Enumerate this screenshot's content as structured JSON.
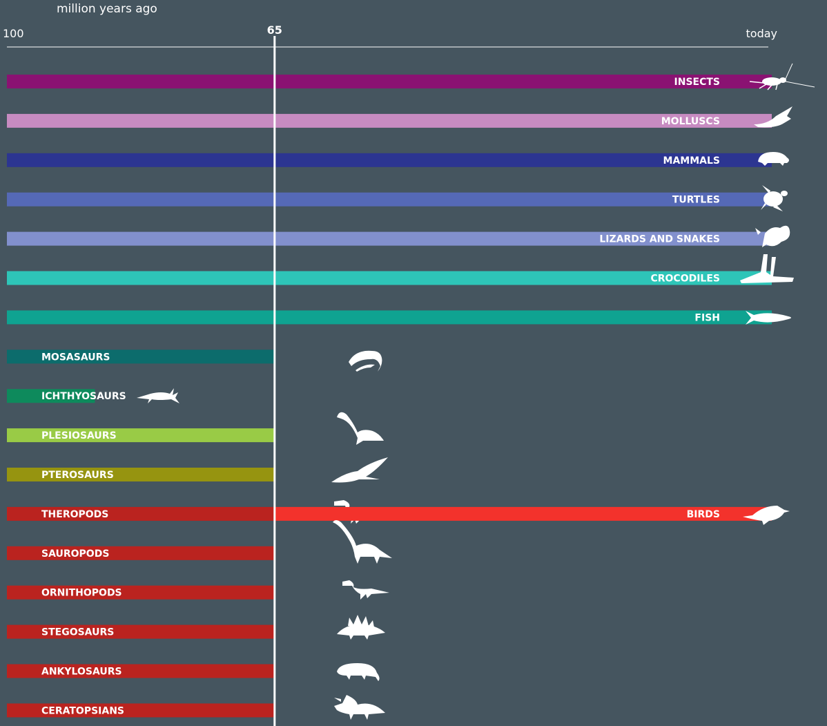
{
  "chart_data": {
    "type": "bar",
    "title": "",
    "xlabel": "million years ago",
    "ylabel": "",
    "xlim": [
      100,
      0
    ],
    "grid": false,
    "ticks": [
      {
        "value": 100,
        "label": "100",
        "bold": false
      },
      {
        "value": 65,
        "label": "65",
        "bold": true
      },
      {
        "value": 0,
        "label": "today",
        "bold": false
      }
    ],
    "marker": {
      "value": 65
    },
    "series": [
      {
        "name": "INSECTS",
        "start": 100,
        "end": 0,
        "color": "#8a1272",
        "icon": "insect-icon",
        "label_side": "end"
      },
      {
        "name": "MOLLUSCS",
        "start": 100,
        "end": 0,
        "color": "#c78bc1",
        "icon": "shell-icon",
        "label_side": "end"
      },
      {
        "name": "MAMMALS",
        "start": 100,
        "end": 0,
        "color": "#2c3591",
        "icon": "mammal-icon",
        "label_side": "end"
      },
      {
        "name": "TURTLES",
        "start": 100,
        "end": 0,
        "color": "#5569b6",
        "icon": "turtle-icon",
        "label_side": "end"
      },
      {
        "name": "LIZARDS AND SNAKES",
        "start": 100,
        "end": 0,
        "color": "#8290cd",
        "icon": "lizard-icon",
        "label_side": "end"
      },
      {
        "name": "CROCODILES",
        "start": 100,
        "end": 0,
        "color": "#2ec5b8",
        "icon": "crocodile-icon",
        "label_side": "end"
      },
      {
        "name": "FISH",
        "start": 100,
        "end": 0,
        "color": "#0fa391",
        "icon": "fish-icon",
        "label_side": "end"
      },
      {
        "name": "MOSASAURS",
        "start": 100,
        "end": 65,
        "color": "#0c6c6c",
        "icon": "mosasaur-icon",
        "label_side": "start"
      },
      {
        "name": "ICHTHYOSAURS",
        "start": 100,
        "end": 88.5,
        "color": "#0e8a5c",
        "icon": "ichthyosaur-icon",
        "label_side": "start"
      },
      {
        "name": "PLESIOSAURS",
        "start": 100,
        "end": 65,
        "color": "#99cb46",
        "icon": "plesiosaur-icon",
        "label_side": "start"
      },
      {
        "name": "PTEROSAURS",
        "start": 100,
        "end": 65,
        "color": "#969410",
        "icon": "pterosaur-icon",
        "label_side": "start"
      },
      {
        "name": "THEROPODS",
        "start": 100,
        "end": 65,
        "color": "#ba231f",
        "icon": "theropod-icon",
        "label_side": "start"
      },
      {
        "name": "BIRDS",
        "start": 65,
        "end": 0,
        "color": "#f3322c",
        "icon": "bird-icon",
        "label_side": "end",
        "same_row_as": "THEROPODS"
      },
      {
        "name": "SAUROPODS",
        "start": 100,
        "end": 65,
        "color": "#ba231f",
        "icon": "sauropod-icon",
        "label_side": "start"
      },
      {
        "name": "ORNITHOPODS",
        "start": 100,
        "end": 65,
        "color": "#ba231f",
        "icon": "ornithopod-icon",
        "label_side": "start"
      },
      {
        "name": "STEGOSAURS",
        "start": 100,
        "end": 65,
        "color": "#ba231f",
        "icon": "stegosaur-icon",
        "label_side": "start"
      },
      {
        "name": "ANKYLOSAURS",
        "start": 100,
        "end": 65,
        "color": "#ba231f",
        "icon": "ankylosaur-icon",
        "label_side": "start"
      },
      {
        "name": "CERATOPSIANS",
        "start": 100,
        "end": 65,
        "color": "#ba231f",
        "icon": "ceratopsian-icon",
        "label_side": "start"
      }
    ]
  }
}
